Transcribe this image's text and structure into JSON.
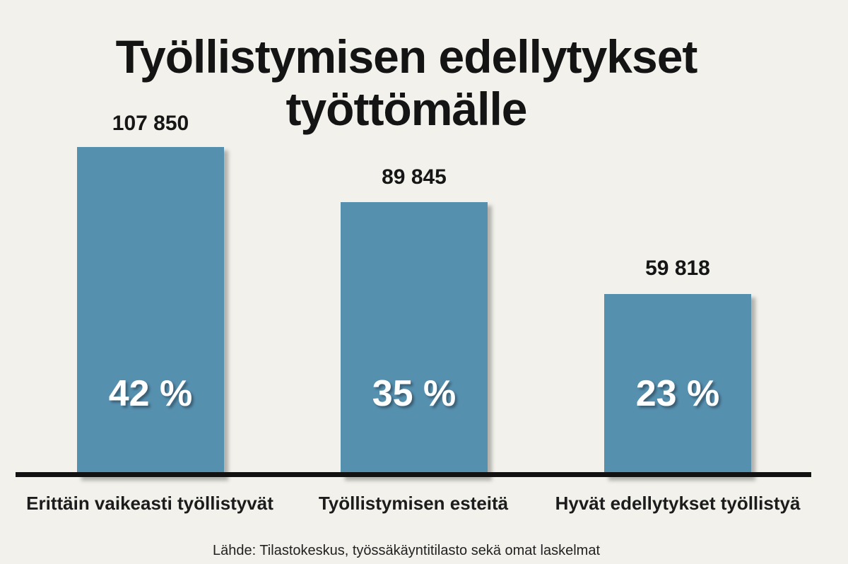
{
  "background_color": "#F2F1EB",
  "chart_data": {
    "type": "bar",
    "title": "Työllistymisen edellytykset työttömälle",
    "title_lines": [
      "Työllistymisen edellytykset",
      "työttömälle"
    ],
    "categories": [
      "Erittäin vaikeasti työllistyvät",
      "Työllistymisen esteitä",
      "Hyvät edellytykset työllistyä"
    ],
    "values": [
      107850,
      89845,
      59818
    ],
    "value_labels": [
      "107 850",
      "89 845",
      "59 818"
    ],
    "percentages": [
      42,
      35,
      23
    ],
    "percent_labels": [
      "42 %",
      "35 %",
      "23 %"
    ],
    "bar_color": "#5690AF",
    "axis_color": "#121212",
    "text_color": "#141414",
    "percent_text_color": "#FFFFFF",
    "xlabel": "",
    "ylabel": "",
    "legend": false,
    "grid": false,
    "source": "Lähde: Tilastokeskus, työssäkäyntitilasto sekä omat laskelmat"
  }
}
